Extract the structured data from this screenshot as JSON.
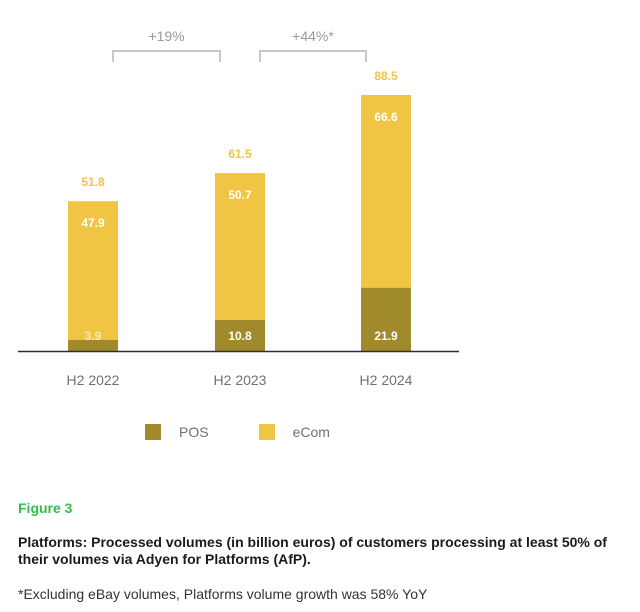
{
  "chart_data": {
    "type": "bar",
    "stacked": true,
    "categories": [
      "H2 2022",
      "H2 2023",
      "H2 2024"
    ],
    "series": [
      {
        "name": "POS",
        "values": [
          3.9,
          10.8,
          21.9
        ],
        "color": "#a08a2b"
      },
      {
        "name": "eCom",
        "values": [
          47.9,
          50.7,
          66.6
        ],
        "color": "#f0c543"
      }
    ],
    "totals": [
      51.8,
      61.5,
      88.5
    ],
    "total_labels": [
      "51.8",
      "61.5",
      "88.5"
    ],
    "segment_labels": {
      "POS": [
        "3.9",
        "10.8",
        "21.9"
      ],
      "eCom": [
        "47.9",
        "50.7",
        "66.6"
      ]
    },
    "growth_annotations": [
      {
        "label": "+19%",
        "from": "H2 2022",
        "to": "H2 2023"
      },
      {
        "label": "+44%*",
        "from": "H2 2023",
        "to": "H2 2024"
      }
    ],
    "ylim": [
      0,
      88.5
    ],
    "grid": false,
    "legend_position": "bottom"
  },
  "legend": {
    "pos_label": "POS",
    "ecom_label": "eCom",
    "pos_color": "#a08a2b",
    "ecom_color": "#f0c543"
  },
  "caption": {
    "figure_label": "Figure 3",
    "title": "Platforms: Processed volumes (in billion euros) of customers processing at least 50% of their volumes via Adyen for Platforms (AfP).",
    "footnote": "*Excluding eBay volumes, Platforms volume growth was 58% YoY"
  }
}
